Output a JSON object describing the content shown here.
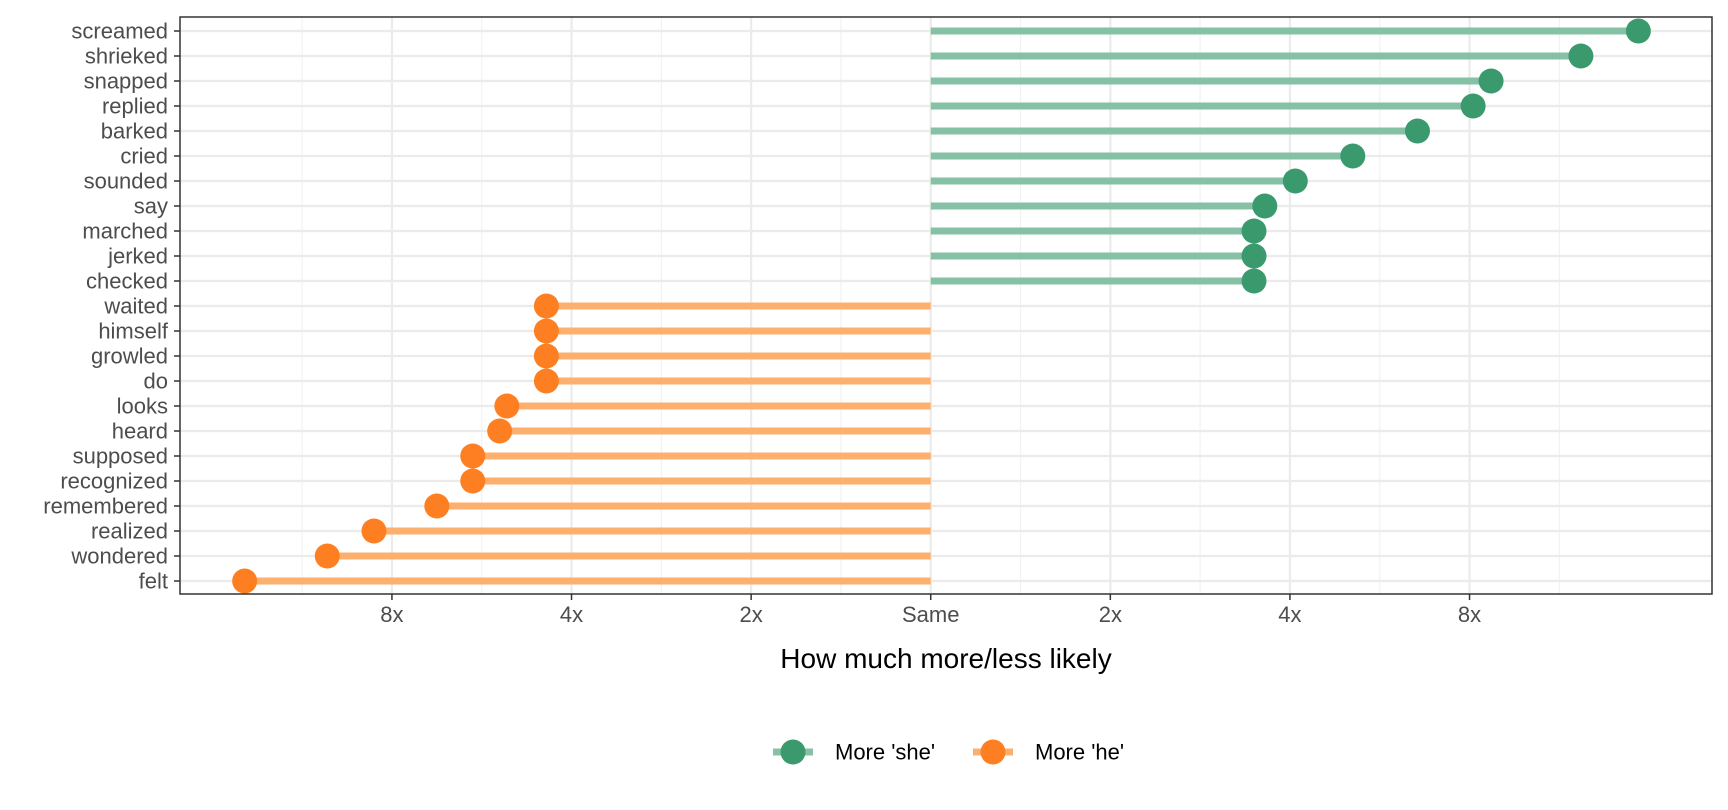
{
  "chart_data": {
    "type": "lollipop",
    "title": "",
    "xlabel": "How much more/less likely",
    "ylabel": "",
    "x_scale": "log2",
    "x_ticks": [
      {
        "value": -3,
        "label": "8x"
      },
      {
        "value": -2,
        "label": "4x"
      },
      {
        "value": -1,
        "label": "2x"
      },
      {
        "value": 0,
        "label": "Same"
      },
      {
        "value": 1,
        "label": "2x"
      },
      {
        "value": 2,
        "label": "4x"
      },
      {
        "value": 3,
        "label": "8x"
      }
    ],
    "xlim": [
      -4.18,
      4.35
    ],
    "grid": true,
    "legend_position": "bottom",
    "series": [
      {
        "name": "More 'she'",
        "color": "#3a9a6e",
        "line_color": "#86c1a5"
      },
      {
        "name": "More 'he'",
        "color": "#fd7f22",
        "line_color": "#fdb06e"
      }
    ],
    "points": [
      {
        "word": "screamed",
        "value": 3.94,
        "series": 0
      },
      {
        "word": "shrieked",
        "value": 3.62,
        "series": 0
      },
      {
        "word": "snapped",
        "value": 3.12,
        "series": 0
      },
      {
        "word": "replied",
        "value": 3.02,
        "series": 0
      },
      {
        "word": "barked",
        "value": 2.71,
        "series": 0
      },
      {
        "word": "cried",
        "value": 2.35,
        "series": 0
      },
      {
        "word": "sounded",
        "value": 2.03,
        "series": 0
      },
      {
        "word": "say",
        "value": 1.86,
        "series": 0
      },
      {
        "word": "marched",
        "value": 1.8,
        "series": 0
      },
      {
        "word": "jerked",
        "value": 1.8,
        "series": 0
      },
      {
        "word": "checked",
        "value": 1.8,
        "series": 0
      },
      {
        "word": "waited",
        "value": -2.14,
        "series": 1
      },
      {
        "word": "himself",
        "value": -2.14,
        "series": 1
      },
      {
        "word": "growled",
        "value": -2.14,
        "series": 1
      },
      {
        "word": "do",
        "value": -2.14,
        "series": 1
      },
      {
        "word": "looks",
        "value": -2.36,
        "series": 1
      },
      {
        "word": "heard",
        "value": -2.4,
        "series": 1
      },
      {
        "word": "supposed",
        "value": -2.55,
        "series": 1
      },
      {
        "word": "recognized",
        "value": -2.55,
        "series": 1
      },
      {
        "word": "remembered",
        "value": -2.75,
        "series": 1
      },
      {
        "word": "realized",
        "value": -3.1,
        "series": 1
      },
      {
        "word": "wondered",
        "value": -3.36,
        "series": 1
      },
      {
        "word": "felt",
        "value": -3.82,
        "series": 1
      }
    ]
  }
}
